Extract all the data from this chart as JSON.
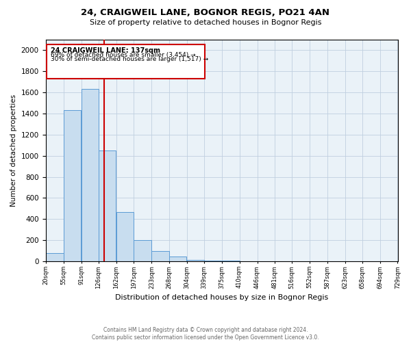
{
  "title": "24, CRAIGWEIL LANE, BOGNOR REGIS, PO21 4AN",
  "subtitle": "Size of property relative to detached houses in Bognor Regis",
  "xlabel": "Distribution of detached houses by size in Bognor Regis",
  "ylabel": "Number of detached properties",
  "footer_line1": "Contains HM Land Registry data © Crown copyright and database right 2024.",
  "footer_line2": "Contains public sector information licensed under the Open Government Licence v3.0.",
  "property_size": 137,
  "annotation_title": "24 CRAIGWEIL LANE: 137sqm",
  "annotation_line1": "69% of detached houses are smaller (3,454) →",
  "annotation_line2": "30% of semi-detached houses are larger (1,517) →",
  "bar_color": "#c8ddef",
  "bar_edge_color": "#5b9bd5",
  "red_line_color": "#cc0000",
  "annotation_box_edge": "#cc0000",
  "background_color": "#eaf2f8",
  "grid_color": "#c0cfe0",
  "bin_edges": [
    20,
    55,
    91,
    126,
    162,
    197,
    233,
    268,
    304,
    339,
    375,
    410,
    446,
    481,
    516,
    552,
    587,
    623,
    658,
    694,
    729
  ],
  "bin_labels": [
    "20sqm",
    "55sqm",
    "91sqm",
    "126sqm",
    "162sqm",
    "197sqm",
    "233sqm",
    "268sqm",
    "304sqm",
    "339sqm",
    "375sqm",
    "410sqm",
    "446sqm",
    "481sqm",
    "516sqm",
    "552sqm",
    "587sqm",
    "623sqm",
    "658sqm",
    "694sqm",
    "729sqm"
  ],
  "counts": [
    80,
    1430,
    1630,
    1050,
    470,
    200,
    100,
    50,
    15,
    8,
    5,
    3,
    2,
    2,
    1,
    1,
    1,
    0,
    0,
    0
  ],
  "ylim": [
    0,
    2100
  ],
  "yticks": [
    0,
    200,
    400,
    600,
    800,
    1000,
    1200,
    1400,
    1600,
    1800,
    2000
  ]
}
